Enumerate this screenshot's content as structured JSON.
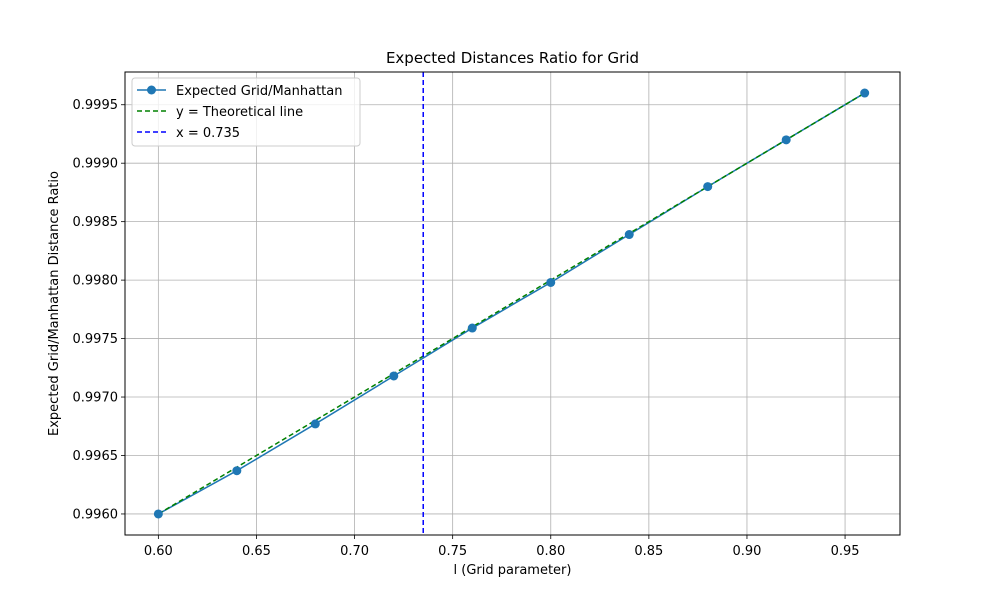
{
  "chart_data": {
    "type": "line",
    "title": "Expected Distances Ratio for Grid",
    "xlabel": "l (Grid parameter)",
    "ylabel": "Expected Grid/Manhattan Distance Ratio",
    "xlim": [
      0.583,
      0.978
    ],
    "ylim": [
      0.99582,
      0.99978
    ],
    "grid": true,
    "legend_position": "top-left",
    "x_ticks": [
      0.6,
      0.65,
      0.7,
      0.75,
      0.8,
      0.85,
      0.9,
      0.95
    ],
    "x_tick_labels": [
      "0.60",
      "0.65",
      "0.70",
      "0.75",
      "0.80",
      "0.85",
      "0.90",
      "0.95"
    ],
    "y_ticks": [
      0.996,
      0.9965,
      0.997,
      0.9975,
      0.998,
      0.9985,
      0.999,
      0.9995
    ],
    "y_tick_labels": [
      "0.9960",
      "0.9965",
      "0.9970",
      "0.9975",
      "0.9980",
      "0.9985",
      "0.9990",
      "0.9995"
    ],
    "series": [
      {
        "name": "Expected Grid/Manhattan",
        "style": "solid-with-markers",
        "color": "#1f77b4",
        "x": [
          0.6,
          0.64,
          0.68,
          0.72,
          0.76,
          0.8,
          0.84,
          0.88,
          0.92,
          0.96
        ],
        "y": [
          0.996,
          0.99637,
          0.99677,
          0.99718,
          0.99759,
          0.99798,
          0.99839,
          0.9988,
          0.9992,
          0.9996
        ]
      },
      {
        "name": "y = Theoretical line",
        "style": "dashed",
        "color": "#008000",
        "x": [
          0.6,
          0.96
        ],
        "y": [
          0.996,
          0.9996
        ]
      }
    ],
    "vlines": [
      {
        "name": "x = 0.735",
        "x": 0.735,
        "style": "dashed",
        "color": "#0000ff"
      }
    ]
  }
}
